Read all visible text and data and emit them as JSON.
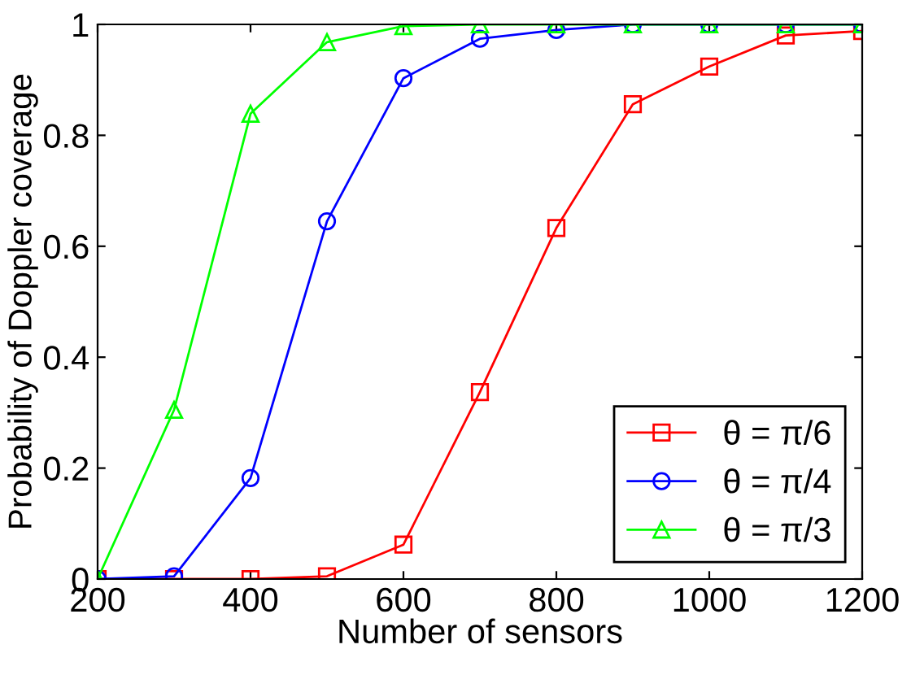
{
  "chart_data": {
    "type": "line",
    "xlabel": "Number of sensors",
    "ylabel": "Probability of Doppler coverage",
    "x": [
      200,
      300,
      400,
      500,
      600,
      700,
      800,
      900,
      1000,
      1100,
      1200
    ],
    "series": [
      {
        "name": "θ = π/6",
        "color": "#ff0000",
        "marker": "square",
        "values": [
          0,
          0,
          0,
          0.005,
          0.062,
          0.337,
          0.633,
          0.856,
          0.924,
          0.98,
          0.988
        ]
      },
      {
        "name": "θ = π/4",
        "color": "#0000ff",
        "marker": "circle",
        "values": [
          0,
          0.005,
          0.182,
          0.645,
          0.903,
          0.974,
          0.99,
          1,
          1,
          1,
          1
        ]
      },
      {
        "name": "θ = π/3",
        "color": "#00ff00",
        "marker": "triangle",
        "values": [
          0,
          0.305,
          0.839,
          0.968,
          0.997,
          1,
          1,
          1,
          1,
          1,
          1
        ]
      }
    ],
    "xlim": [
      200,
      1200
    ],
    "xticks": [
      200,
      400,
      600,
      800,
      1000,
      1200
    ],
    "ylim": [
      0,
      1
    ],
    "yticks": [
      0,
      0.2,
      0.4,
      0.6,
      0.8,
      1
    ],
    "grid": false,
    "legend": "bottom right",
    "line_style": "solid"
  }
}
